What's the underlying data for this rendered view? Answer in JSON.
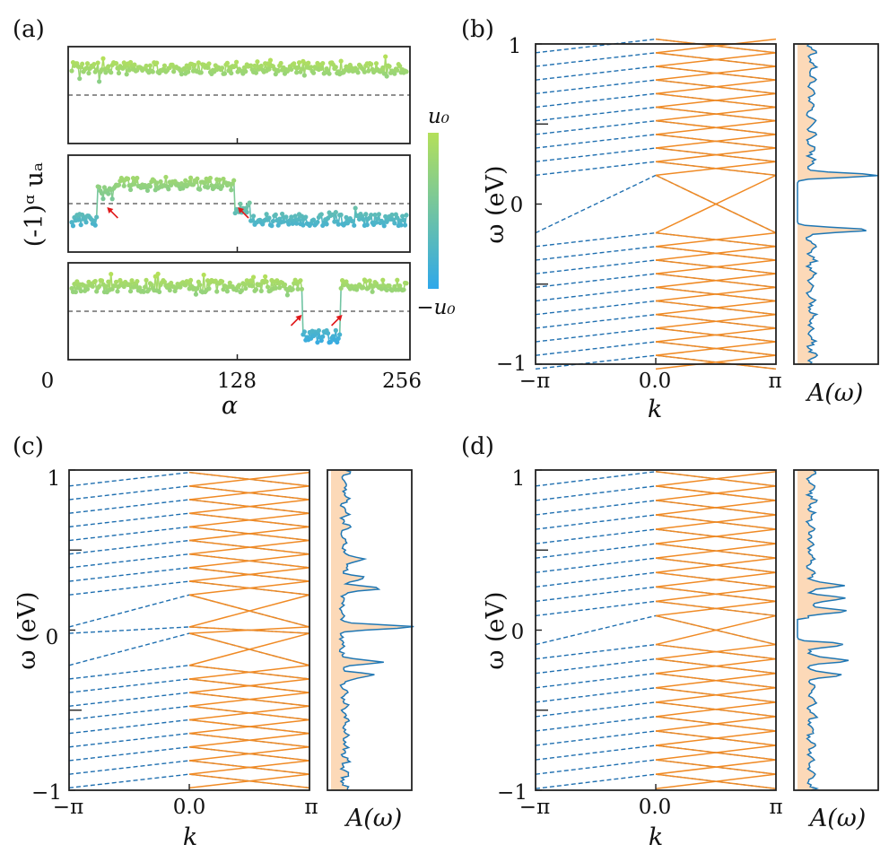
{
  "figure": {
    "colors": {
      "band_dashed": "#1f6fb0",
      "band_solid": "#f08a24",
      "dos_line": "#1f77b4",
      "dos_fill": "#fcd9b8",
      "arrow": "#e0191b",
      "cmap_low": "#2fa8ea",
      "cmap_high": "#b4e05a"
    }
  },
  "chart_data": [
    {
      "id": "a",
      "panel_label": "(a)",
      "type": "scatter",
      "ylabel": "(-1)ᵅ uₐ",
      "xlabel": "α",
      "xlim": [
        0,
        256
      ],
      "xticks": [
        "0",
        "128",
        "256"
      ],
      "colorbar": {
        "max_label": "u₀",
        "min_label": "−u₀"
      },
      "reference_line": "dashed at midline",
      "series": [
        {
          "name": "uniform",
          "profile": [
            [
              0,
              256,
              0.75
            ]
          ],
          "arrows": []
        },
        {
          "name": "two_domain_walls",
          "profile": [
            [
              0,
              19,
              -0.45
            ],
            [
              20,
              31,
              0.3
            ],
            [
              32,
              124,
              0.55
            ],
            [
              125,
              136,
              -0.1
            ],
            [
              137,
              256,
              -0.45
            ]
          ],
          "arrows": [
            27,
            127
          ]
        },
        {
          "name": "soliton_pair",
          "profile": [
            [
              0,
              176,
              0.7
            ],
            [
              177,
              205,
              -0.7
            ],
            [
              206,
              256,
              0.7
            ]
          ],
          "arrows": [
            176,
            207
          ]
        }
      ]
    },
    {
      "id": "b",
      "panel_label": "(b)",
      "type": "line",
      "xlabel": "k",
      "ylabel": "ω (eV)",
      "xticks": [
        "−π",
        "0.0",
        "π"
      ],
      "yticks": [
        "−1",
        "0",
        "1"
      ],
      "ylim": [
        -1,
        1
      ],
      "dos_xlabel": "A(ω)",
      "gap_level": 0.18,
      "band_spacing": 0.085,
      "midgap_levels": [],
      "dos_peaks": [
        [
          0.18,
          0.95
        ],
        [
          -0.16,
          0.95
        ]
      ]
    },
    {
      "id": "c",
      "panel_label": "(c)",
      "type": "line",
      "xlabel": "k",
      "ylabel": "ω (eV)",
      "xticks": [
        "−π",
        "0.0",
        "π"
      ],
      "yticks": [
        "−1",
        "0",
        "1"
      ],
      "ylim": [
        -1,
        1
      ],
      "dos_xlabel": "A(ω)",
      "gap_level": 0.22,
      "band_spacing": 0.085,
      "midgap_levels": [
        0.02,
        -0.02
      ],
      "dos_peaks": [
        [
          0.02,
          1.0
        ],
        [
          0.26,
          0.5
        ],
        [
          -0.2,
          0.55
        ],
        [
          -0.28,
          0.4
        ],
        [
          0.33,
          0.3
        ],
        [
          0.44,
          0.3
        ]
      ]
    },
    {
      "id": "d",
      "panel_label": "(d)",
      "type": "line",
      "xlabel": "k",
      "ylabel": "ω (eV)",
      "xticks": [
        "−π",
        "0.0",
        "π"
      ],
      "yticks": [
        "−1",
        "0",
        "1"
      ],
      "ylim": [
        -1,
        1
      ],
      "dos_xlabel": "A(ω)",
      "gap_level": 0.09,
      "band_spacing": 0.09,
      "midgap_levels": [],
      "dos_peaks": [
        [
          0.12,
          0.55
        ],
        [
          0.2,
          0.5
        ],
        [
          0.28,
          0.4
        ],
        [
          -0.09,
          0.5
        ],
        [
          -0.19,
          0.5
        ],
        [
          -0.28,
          0.4
        ]
      ]
    }
  ]
}
